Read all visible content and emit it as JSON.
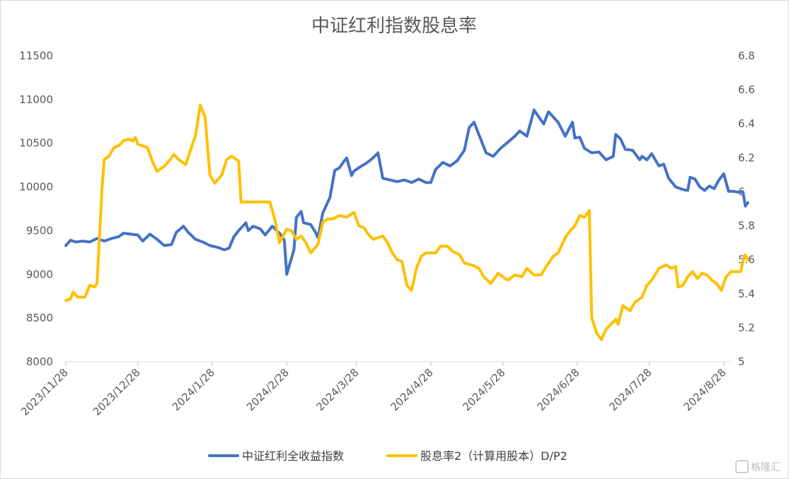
{
  "chart_data": {
    "type": "line",
    "title": "中证红利指数股息率",
    "x_tick_labels": [
      "2023/11/28",
      "2023/12/28",
      "2024/1/28",
      "2024/2/28",
      "2024/3/28",
      "2024/4/28",
      "2024/5/28",
      "2024/6/28",
      "2024/7/28",
      "2024/8/28"
    ],
    "x_range": [
      "2023-11-28",
      "2024-08-31"
    ],
    "y_left": {
      "ylim": [
        8000,
        11500
      ],
      "ticks": [
        "8000",
        "8500",
        "9000",
        "9500",
        "10000",
        "10500",
        "11000",
        "11500"
      ]
    },
    "y_right": {
      "ylim": [
        5,
        6.8
      ],
      "ticks": [
        "5",
        "5.2",
        "5.4",
        "5.6",
        "5.8",
        "6",
        "6.2",
        "6.4",
        "6.6",
        "6.8"
      ]
    },
    "grid": false,
    "legend_position": "bottom",
    "series": [
      {
        "name": "中证红利全收益指数",
        "axis": "left",
        "color": "#4472C4",
        "points": [
          [
            "2023-11-28",
            9330
          ],
          [
            "2023-11-30",
            9390
          ],
          [
            "2023-12-02",
            9370
          ],
          [
            "2023-12-05",
            9380
          ],
          [
            "2023-12-08",
            9370
          ],
          [
            "2023-12-11",
            9410
          ],
          [
            "2023-12-14",
            9380
          ],
          [
            "2023-12-17",
            9410
          ],
          [
            "2023-12-20",
            9430
          ],
          [
            "2023-12-22",
            9470
          ],
          [
            "2023-12-25",
            9460
          ],
          [
            "2023-12-28",
            9450
          ],
          [
            "2023-12-30",
            9380
          ],
          [
            "2024-01-02",
            9460
          ],
          [
            "2024-01-05",
            9400
          ],
          [
            "2024-01-08",
            9330
          ],
          [
            "2024-01-11",
            9340
          ],
          [
            "2024-01-13",
            9480
          ],
          [
            "2024-01-16",
            9550
          ],
          [
            "2024-01-18",
            9480
          ],
          [
            "2024-01-21",
            9400
          ],
          [
            "2024-01-24",
            9370
          ],
          [
            "2024-01-27",
            9330
          ],
          [
            "2024-01-30",
            9310
          ],
          [
            "2024-02-02",
            9280
          ],
          [
            "2024-02-04",
            9300
          ],
          [
            "2024-02-06",
            9430
          ],
          [
            "2024-02-08",
            9500
          ],
          [
            "2024-02-11",
            9590
          ],
          [
            "2024-02-12",
            9500
          ],
          [
            "2024-02-14",
            9550
          ],
          [
            "2024-02-17",
            9520
          ],
          [
            "2024-02-19",
            9450
          ],
          [
            "2024-02-22",
            9550
          ],
          [
            "2024-02-25",
            9470
          ],
          [
            "2024-02-27",
            9390
          ],
          [
            "2024-02-28",
            9000
          ],
          [
            "2024-03-02",
            9280
          ],
          [
            "2024-03-03",
            9650
          ],
          [
            "2024-03-05",
            9720
          ],
          [
            "2024-03-06",
            9590
          ],
          [
            "2024-03-09",
            9570
          ],
          [
            "2024-03-11",
            9480
          ],
          [
            "2024-03-12",
            9420
          ],
          [
            "2024-03-14",
            9700
          ],
          [
            "2024-03-17",
            9880
          ],
          [
            "2024-03-19",
            10190
          ],
          [
            "2024-03-21",
            10220
          ],
          [
            "2024-03-23",
            10300
          ],
          [
            "2024-03-24",
            10330
          ],
          [
            "2024-03-26",
            10130
          ],
          [
            "2024-03-27",
            10180
          ],
          [
            "2024-03-29",
            10220
          ],
          [
            "2024-04-01",
            10270
          ],
          [
            "2024-04-03",
            10310
          ],
          [
            "2024-04-05",
            10360
          ],
          [
            "2024-04-06",
            10390
          ],
          [
            "2024-04-08",
            10100
          ],
          [
            "2024-04-11",
            10080
          ],
          [
            "2024-04-14",
            10060
          ],
          [
            "2024-04-17",
            10080
          ],
          [
            "2024-04-20",
            10050
          ],
          [
            "2024-04-23",
            10090
          ],
          [
            "2024-04-26",
            10050
          ],
          [
            "2024-04-28",
            10050
          ],
          [
            "2024-04-30",
            10200
          ],
          [
            "2024-05-03",
            10280
          ],
          [
            "2024-05-06",
            10240
          ],
          [
            "2024-05-09",
            10300
          ],
          [
            "2024-05-12",
            10420
          ],
          [
            "2024-05-14",
            10680
          ],
          [
            "2024-05-16",
            10740
          ],
          [
            "2024-05-18",
            10600
          ],
          [
            "2024-05-21",
            10390
          ],
          [
            "2024-05-24",
            10350
          ],
          [
            "2024-05-27",
            10440
          ],
          [
            "2024-05-30",
            10510
          ],
          [
            "2024-06-02",
            10580
          ],
          [
            "2024-06-04",
            10640
          ],
          [
            "2024-06-07",
            10580
          ],
          [
            "2024-06-10",
            10880
          ],
          [
            "2024-06-12",
            10800
          ],
          [
            "2024-06-14",
            10720
          ],
          [
            "2024-06-16",
            10860
          ],
          [
            "2024-06-18",
            10800
          ],
          [
            "2024-06-20",
            10740
          ],
          [
            "2024-06-23",
            10580
          ],
          [
            "2024-06-26",
            10740
          ],
          [
            "2024-06-27",
            10560
          ],
          [
            "2024-06-29",
            10570
          ],
          [
            "2024-07-01",
            10440
          ],
          [
            "2024-07-04",
            10390
          ],
          [
            "2024-07-07",
            10400
          ],
          [
            "2024-07-10",
            10310
          ],
          [
            "2024-07-13",
            10350
          ],
          [
            "2024-07-14",
            10600
          ],
          [
            "2024-07-16",
            10550
          ],
          [
            "2024-07-18",
            10430
          ],
          [
            "2024-07-21",
            10420
          ],
          [
            "2024-07-24",
            10310
          ],
          [
            "2024-07-25",
            10350
          ],
          [
            "2024-07-27",
            10310
          ],
          [
            "2024-07-29",
            10380
          ],
          [
            "2024-08-01",
            10240
          ],
          [
            "2024-08-03",
            10260
          ],
          [
            "2024-08-05",
            10100
          ],
          [
            "2024-08-08",
            10000
          ],
          [
            "2024-08-11",
            9970
          ],
          [
            "2024-08-13",
            9960
          ],
          [
            "2024-08-14",
            10110
          ],
          [
            "2024-08-16",
            10090
          ],
          [
            "2024-08-18",
            10000
          ],
          [
            "2024-08-20",
            9960
          ],
          [
            "2024-08-22",
            10010
          ],
          [
            "2024-08-24",
            9980
          ],
          [
            "2024-08-26",
            10080
          ],
          [
            "2024-08-28",
            10150
          ],
          [
            "2024-08-30",
            9950
          ],
          [
            "2024-09-01",
            9950
          ],
          [
            "2024-09-03",
            9940
          ],
          [
            "2024-09-05",
            9940
          ],
          [
            "2024-09-06",
            9780
          ],
          [
            "2024-09-07",
            9820
          ]
        ]
      },
      {
        "name": "股息率2（计算用股本）D/P2",
        "axis": "right",
        "color": "#FFC000",
        "points": [
          [
            "2023-11-28",
            5.36
          ],
          [
            "2023-11-30",
            5.37
          ],
          [
            "2023-12-01",
            5.41
          ],
          [
            "2023-12-03",
            5.38
          ],
          [
            "2023-12-06",
            5.38
          ],
          [
            "2023-12-08",
            5.45
          ],
          [
            "2023-12-10",
            5.44
          ],
          [
            "2023-12-11",
            5.46
          ],
          [
            "2023-12-13",
            6.0
          ],
          [
            "2023-12-14",
            6.19
          ],
          [
            "2023-12-16",
            6.21
          ],
          [
            "2023-12-18",
            6.26
          ],
          [
            "2023-12-20",
            6.27
          ],
          [
            "2023-12-22",
            6.3
          ],
          [
            "2023-12-24",
            6.31
          ],
          [
            "2023-12-26",
            6.3
          ],
          [
            "2023-12-27",
            6.32
          ],
          [
            "2023-12-28",
            6.28
          ],
          [
            "2023-12-30",
            6.27
          ],
          [
            "2024-01-01",
            6.26
          ],
          [
            "2024-01-03",
            6.18
          ],
          [
            "2024-01-05",
            6.12
          ],
          [
            "2024-01-08",
            6.15
          ],
          [
            "2024-01-10",
            6.18
          ],
          [
            "2024-01-12",
            6.22
          ],
          [
            "2024-01-14",
            6.19
          ],
          [
            "2024-01-17",
            6.16
          ],
          [
            "2024-01-19",
            6.25
          ],
          [
            "2024-01-21",
            6.33
          ],
          [
            "2024-01-23",
            6.51
          ],
          [
            "2024-01-25",
            6.44
          ],
          [
            "2024-01-27",
            6.1
          ],
          [
            "2024-01-29",
            6.05
          ],
          [
            "2024-02-01",
            6.1
          ],
          [
            "2024-02-03",
            6.19
          ],
          [
            "2024-02-05",
            6.21
          ],
          [
            "2024-02-08",
            6.18
          ],
          [
            "2024-02-09",
            5.94
          ],
          [
            "2024-02-12",
            5.94
          ],
          [
            "2024-02-15",
            5.94
          ],
          [
            "2024-02-18",
            5.94
          ],
          [
            "2024-02-21",
            5.94
          ],
          [
            "2024-02-23",
            5.84
          ],
          [
            "2024-02-25",
            5.7
          ],
          [
            "2024-02-28",
            5.78
          ],
          [
            "2024-03-01",
            5.77
          ],
          [
            "2024-03-03",
            5.72
          ],
          [
            "2024-03-05",
            5.74
          ],
          [
            "2024-03-07",
            5.7
          ],
          [
            "2024-03-09",
            5.64
          ],
          [
            "2024-03-12",
            5.69
          ],
          [
            "2024-03-14",
            5.82
          ],
          [
            "2024-03-16",
            5.84
          ],
          [
            "2024-03-18",
            5.84
          ],
          [
            "2024-03-21",
            5.86
          ],
          [
            "2024-03-24",
            5.85
          ],
          [
            "2024-03-27",
            5.88
          ],
          [
            "2024-03-29",
            5.8
          ],
          [
            "2024-03-31",
            5.79
          ],
          [
            "2024-04-02",
            5.75
          ],
          [
            "2024-04-04",
            5.72
          ],
          [
            "2024-04-08",
            5.74
          ],
          [
            "2024-04-10",
            5.7
          ],
          [
            "2024-04-12",
            5.64
          ],
          [
            "2024-04-14",
            5.6
          ],
          [
            "2024-04-16",
            5.59
          ],
          [
            "2024-04-18",
            5.45
          ],
          [
            "2024-04-20",
            5.42
          ],
          [
            "2024-04-22",
            5.55
          ],
          [
            "2024-04-24",
            5.62
          ],
          [
            "2024-04-26",
            5.64
          ],
          [
            "2024-04-28",
            5.64
          ],
          [
            "2024-04-30",
            5.64
          ],
          [
            "2024-05-02",
            5.68
          ],
          [
            "2024-05-05",
            5.68
          ],
          [
            "2024-05-07",
            5.65
          ],
          [
            "2024-05-10",
            5.63
          ],
          [
            "2024-05-12",
            5.58
          ],
          [
            "2024-05-15",
            5.57
          ],
          [
            "2024-05-18",
            5.55
          ],
          [
            "2024-05-20",
            5.5
          ],
          [
            "2024-05-23",
            5.46
          ],
          [
            "2024-05-26",
            5.52
          ],
          [
            "2024-05-28",
            5.5
          ],
          [
            "2024-05-30",
            5.48
          ],
          [
            "2024-06-02",
            5.51
          ],
          [
            "2024-06-05",
            5.5
          ],
          [
            "2024-06-07",
            5.55
          ],
          [
            "2024-06-10",
            5.51
          ],
          [
            "2024-06-13",
            5.51
          ],
          [
            "2024-06-15",
            5.56
          ],
          [
            "2024-06-18",
            5.62
          ],
          [
            "2024-06-20",
            5.64
          ],
          [
            "2024-06-23",
            5.73
          ],
          [
            "2024-06-25",
            5.77
          ],
          [
            "2024-06-27",
            5.8
          ],
          [
            "2024-06-29",
            5.86
          ],
          [
            "2024-07-01",
            5.85
          ],
          [
            "2024-07-03",
            5.89
          ],
          [
            "2024-07-04",
            5.26
          ],
          [
            "2024-07-06",
            5.17
          ],
          [
            "2024-07-08",
            5.13
          ],
          [
            "2024-07-10",
            5.19
          ],
          [
            "2024-07-12",
            5.22
          ],
          [
            "2024-07-14",
            5.25
          ],
          [
            "2024-07-15",
            5.22
          ],
          [
            "2024-07-17",
            5.33
          ],
          [
            "2024-07-20",
            5.3
          ],
          [
            "2024-07-22",
            5.35
          ],
          [
            "2024-07-25",
            5.38
          ],
          [
            "2024-07-27",
            5.45
          ],
          [
            "2024-07-29",
            5.48
          ],
          [
            "2024-08-01",
            5.55
          ],
          [
            "2024-08-04",
            5.57
          ],
          [
            "2024-08-06",
            5.55
          ],
          [
            "2024-08-08",
            5.56
          ],
          [
            "2024-08-09",
            5.44
          ],
          [
            "2024-08-11",
            5.45
          ],
          [
            "2024-08-13",
            5.5
          ],
          [
            "2024-08-15",
            5.53
          ],
          [
            "2024-08-17",
            5.49
          ],
          [
            "2024-08-19",
            5.52
          ],
          [
            "2024-08-21",
            5.51
          ],
          [
            "2024-08-23",
            5.48
          ],
          [
            "2024-08-25",
            5.46
          ],
          [
            "2024-08-27",
            5.42
          ],
          [
            "2024-08-29",
            5.5
          ],
          [
            "2024-08-31",
            5.53
          ],
          [
            "2024-09-02",
            5.53
          ],
          [
            "2024-09-04",
            5.53
          ],
          [
            "2024-09-05",
            5.59
          ],
          [
            "2024-09-06",
            5.63
          ],
          [
            "2024-09-07",
            5.6
          ]
        ]
      }
    ]
  },
  "watermark": "格隆汇"
}
